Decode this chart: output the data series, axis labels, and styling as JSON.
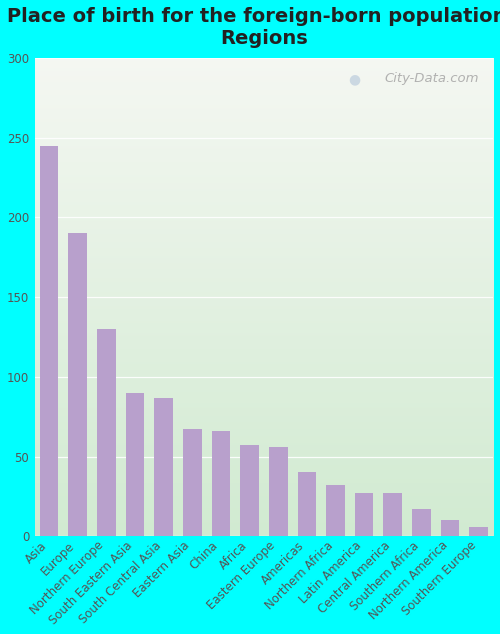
{
  "title": "Place of birth for the foreign-born population -\nRegions",
  "categories": [
    "Asia",
    "Europe",
    "Northern Europe",
    "South Eastern Asia",
    "South Central Asia",
    "Eastern Asia",
    "China",
    "Africa",
    "Eastern Europe",
    "Americas",
    "Northern Africa",
    "Latin America",
    "Central America",
    "Southern Africa",
    "Northern America",
    "Southern Europe"
  ],
  "values": [
    245,
    190,
    130,
    90,
    87,
    67,
    66,
    57,
    56,
    40,
    32,
    27,
    27,
    17,
    10,
    6
  ],
  "bar_color": "#b8a0cc",
  "background_color_fig": "#00ffff",
  "ylim": [
    0,
    300
  ],
  "yticks": [
    0,
    50,
    100,
    150,
    200,
    250,
    300
  ],
  "title_fontsize": 14,
  "tick_label_fontsize": 8.5,
  "watermark": "City-Data.com",
  "gradient_top": "#f5f5f0",
  "gradient_bottom": "#d0e8d0"
}
